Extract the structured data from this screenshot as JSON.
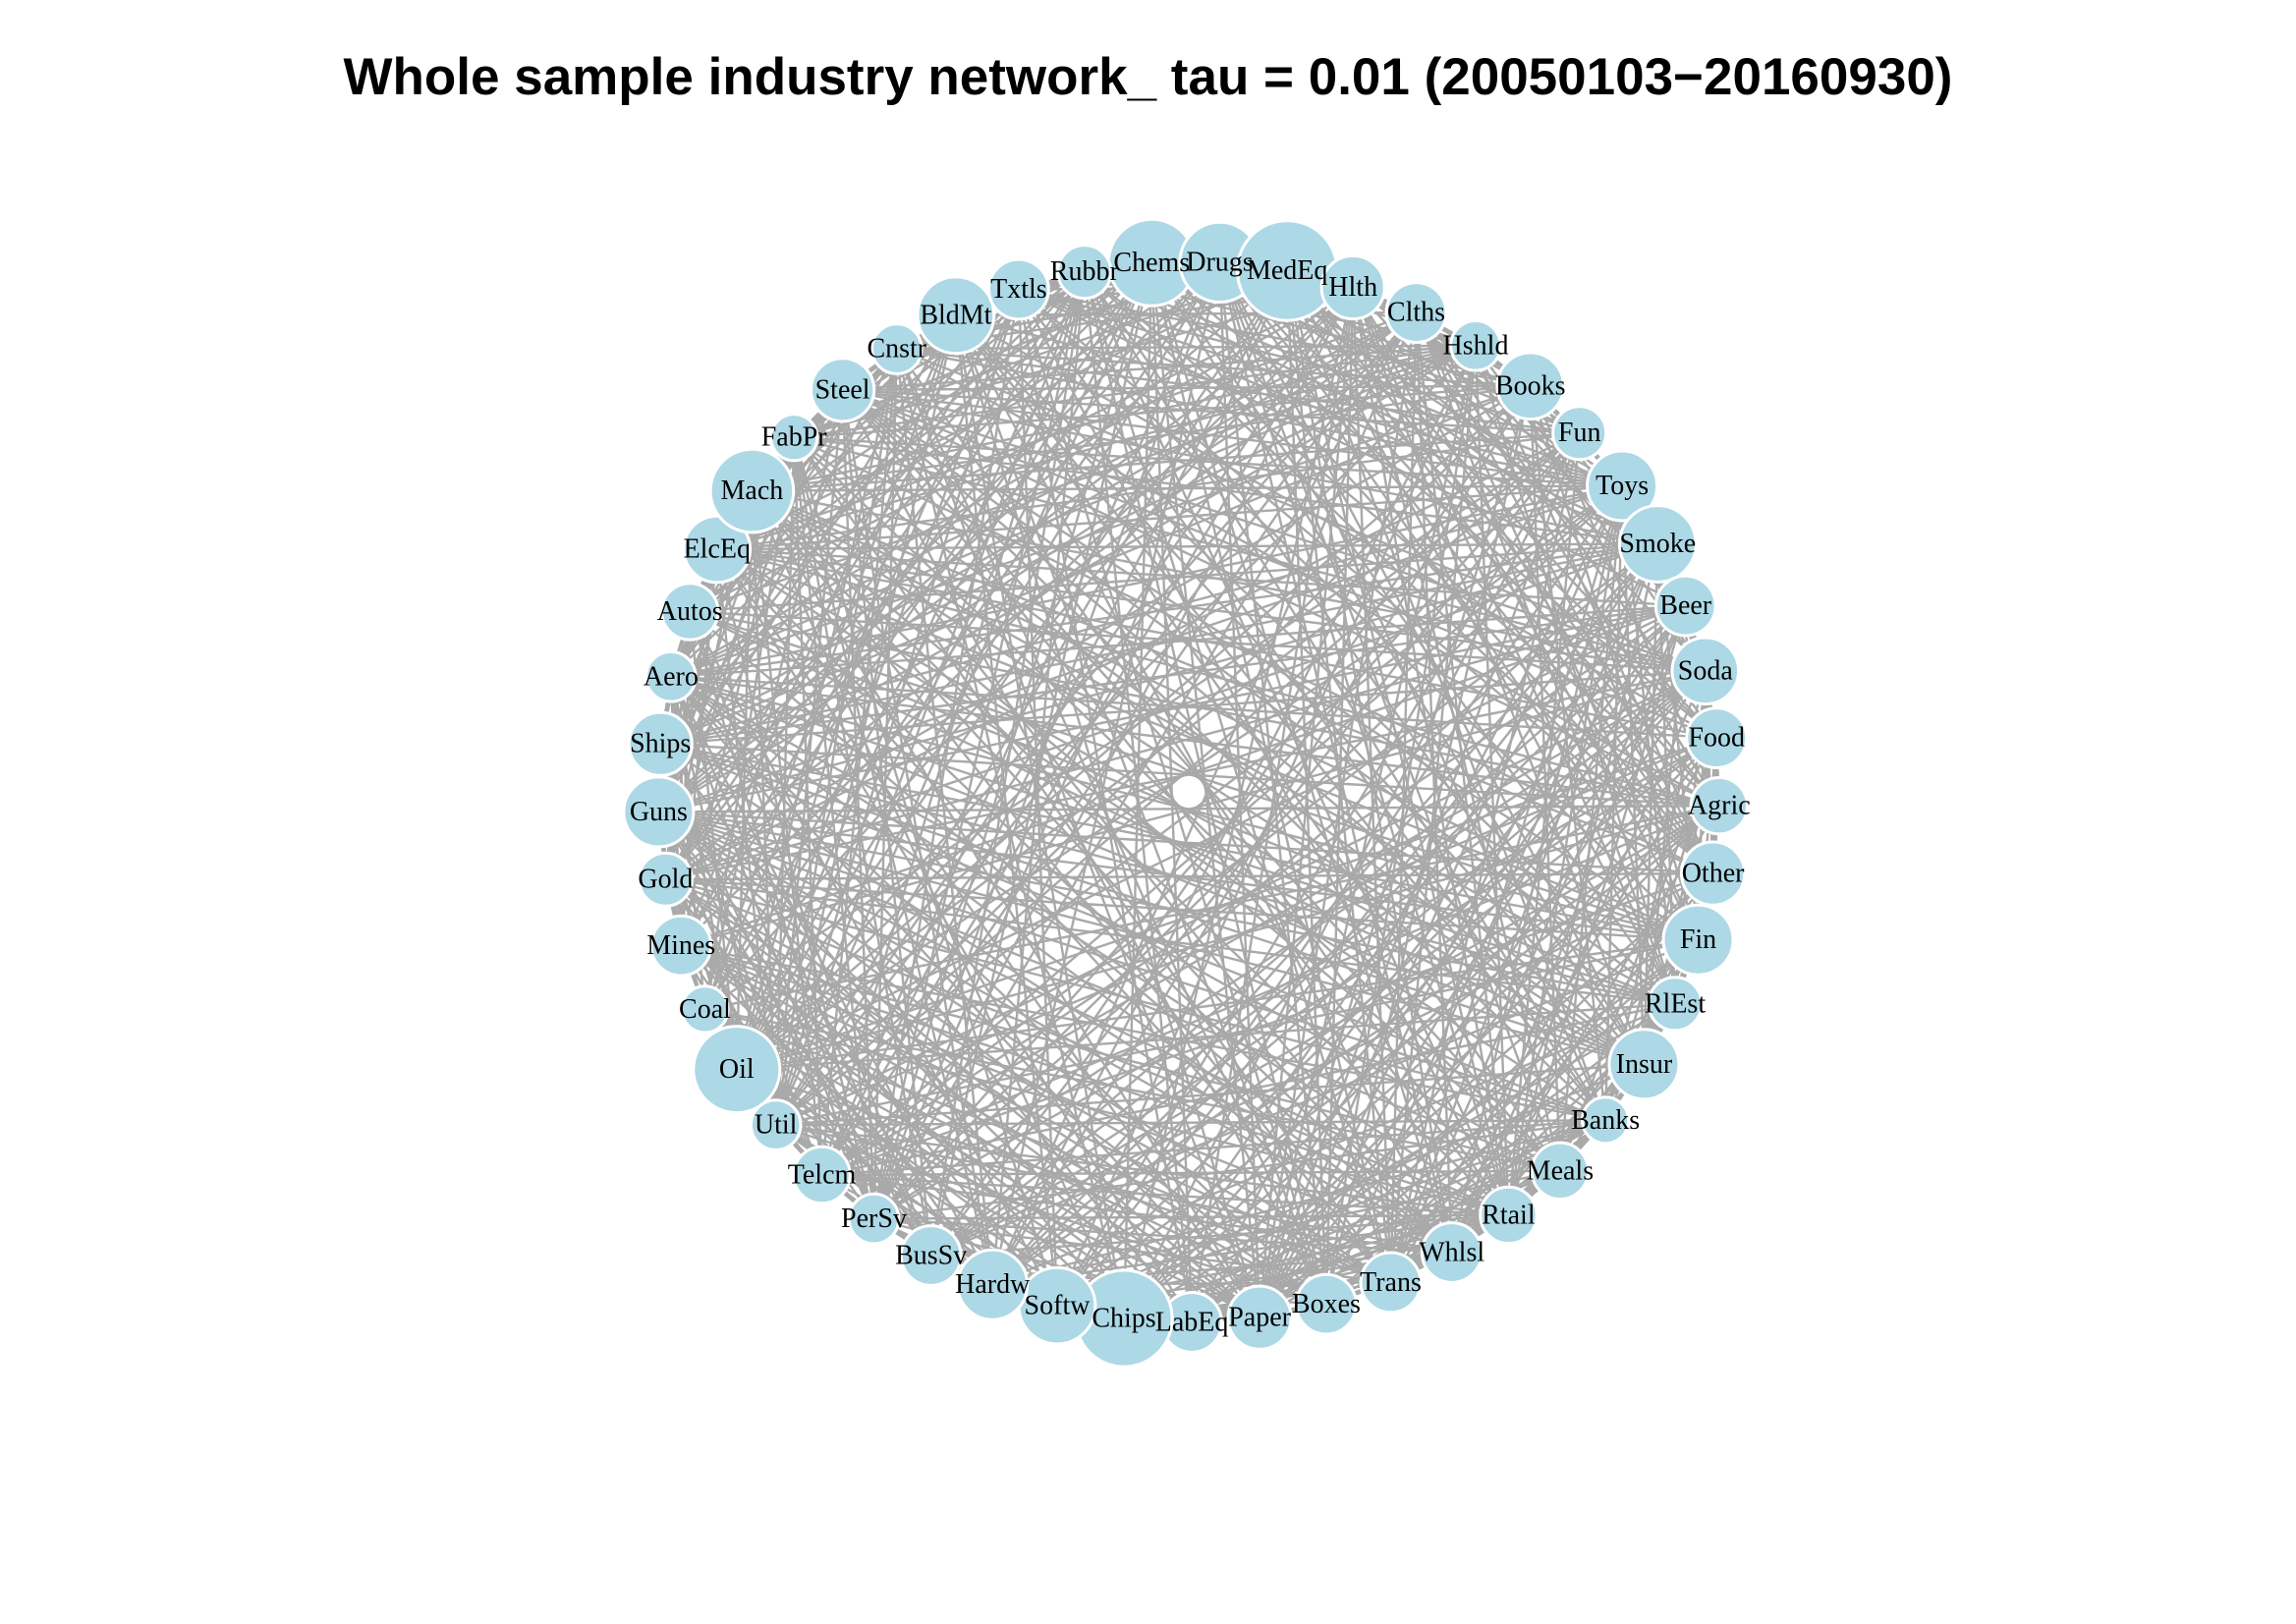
{
  "title": "Whole sample industry network_ tau = 0.01 (20050103−20160930)",
  "colors": {
    "node_fill": "#add8e6",
    "node_stroke": "#ffffff",
    "edge": "#a9a9a9",
    "label": "#000000"
  },
  "layout_type": "circle",
  "nodes": [
    {
      "name": "Chems",
      "degree": 40
    },
    {
      "name": "Drugs",
      "degree": 36
    },
    {
      "name": "MedEq",
      "degree": 48
    },
    {
      "name": "Hlth",
      "degree": 26
    },
    {
      "name": "Clths",
      "degree": 24
    },
    {
      "name": "Hshld",
      "degree": 18
    },
    {
      "name": "Books",
      "degree": 28
    },
    {
      "name": "Fun",
      "degree": 20
    },
    {
      "name": "Toys",
      "degree": 30
    },
    {
      "name": "Smoke",
      "degree": 34
    },
    {
      "name": "Beer",
      "degree": 24
    },
    {
      "name": "Soda",
      "degree": 28
    },
    {
      "name": "Food",
      "degree": 24
    },
    {
      "name": "Agric",
      "degree": 22
    },
    {
      "name": "Other",
      "degree": 26
    },
    {
      "name": "Fin",
      "degree": 30
    },
    {
      "name": "RlEst",
      "degree": 20
    },
    {
      "name": "Insur",
      "degree": 30
    },
    {
      "name": "Banks",
      "degree": 16
    },
    {
      "name": "Meals",
      "degree": 22
    },
    {
      "name": "Rtail",
      "degree": 22
    },
    {
      "name": "Whlsl",
      "degree": 24
    },
    {
      "name": "Trans",
      "degree": 24
    },
    {
      "name": "Boxes",
      "degree": 24
    },
    {
      "name": "Paper",
      "degree": 26
    },
    {
      "name": "LabEq",
      "degree": 24
    },
    {
      "name": "Chips",
      "degree": 46
    },
    {
      "name": "Softw",
      "degree": 34
    },
    {
      "name": "Hardw",
      "degree": 30
    },
    {
      "name": "BusSv",
      "degree": 24
    },
    {
      "name": "PerSv",
      "degree": 18
    },
    {
      "name": "Telcm",
      "degree": 22
    },
    {
      "name": "Util",
      "degree": 18
    },
    {
      "name": "Oil",
      "degree": 40
    },
    {
      "name": "Coal",
      "degree": 16
    },
    {
      "name": "Mines",
      "degree": 24
    },
    {
      "name": "Gold",
      "degree": 20
    },
    {
      "name": "Guns",
      "degree": 30
    },
    {
      "name": "Ships",
      "degree": 26
    },
    {
      "name": "Aero",
      "degree": 18
    },
    {
      "name": "Autos",
      "degree": 22
    },
    {
      "name": "ElcEq",
      "degree": 28
    },
    {
      "name": "Mach",
      "degree": 38
    },
    {
      "name": "FabPr",
      "degree": 16
    },
    {
      "name": "Steel",
      "degree": 26
    },
    {
      "name": "Cnstr",
      "degree": 18
    },
    {
      "name": "BldMt",
      "degree": 34
    },
    {
      "name": "Txtls",
      "degree": 24
    },
    {
      "name": "Rubbr",
      "degree": 20
    }
  ]
}
